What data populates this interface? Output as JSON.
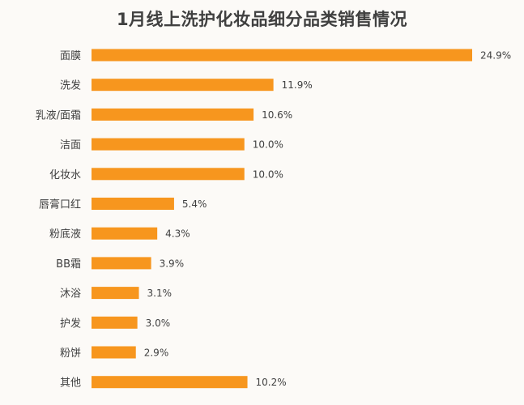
{
  "chart_data": {
    "type": "bar",
    "orientation": "horizontal",
    "title": "1月线上洗护化妆品细分品类销售情况",
    "categories": [
      "面膜",
      "洗发",
      "乳液/面霜",
      "洁面",
      "化妆水",
      "唇膏口红",
      "粉底液",
      "BB霜",
      "沐浴",
      "护发",
      "粉饼",
      "其他"
    ],
    "values": [
      24.9,
      11.9,
      10.6,
      10.0,
      10.0,
      5.4,
      4.3,
      3.9,
      3.1,
      3.0,
      2.9,
      10.2
    ],
    "value_labels": [
      "24.9%",
      "11.9%",
      "10.6%",
      "10.0%",
      "10.0%",
      "5.4%",
      "4.3%",
      "3.9%",
      "3.1%",
      "3.0%",
      "2.9%",
      "10.2%"
    ],
    "unit": "%",
    "xlim": [
      0,
      24.9
    ],
    "grid": false,
    "legend": "none",
    "bar_color": "#f7961e"
  }
}
